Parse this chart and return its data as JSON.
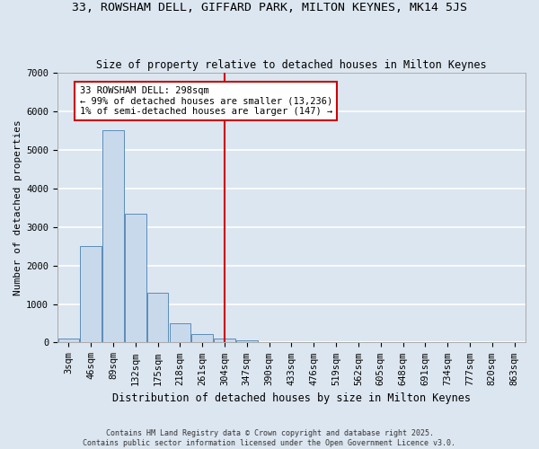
{
  "title": "33, ROWSHAM DELL, GIFFARD PARK, MILTON KEYNES, MK14 5JS",
  "subtitle": "Size of property relative to detached houses in Milton Keynes",
  "xlabel": "Distribution of detached houses by size in Milton Keynes",
  "ylabel": "Number of detached properties",
  "bar_color": "#c9d9ec",
  "bar_edge_color": "#5b8db8",
  "background_color": "#dce6f0",
  "grid_color": "#ffffff",
  "fig_background": "#dce6f0",
  "categories": [
    "3sqm",
    "46sqm",
    "89sqm",
    "132sqm",
    "175sqm",
    "218sqm",
    "261sqm",
    "304sqm",
    "347sqm",
    "390sqm",
    "433sqm",
    "476sqm",
    "519sqm",
    "562sqm",
    "605sqm",
    "648sqm",
    "691sqm",
    "734sqm",
    "777sqm",
    "820sqm",
    "863sqm"
  ],
  "values": [
    100,
    2500,
    5500,
    3350,
    1300,
    500,
    230,
    100,
    60,
    20,
    5,
    2,
    1,
    0,
    0,
    0,
    0,
    0,
    0,
    0,
    0
  ],
  "vline_index": 7,
  "vline_color": "#cc0000",
  "annotation_line1": "33 ROWSHAM DELL: 298sqm",
  "annotation_line2": "← 99% of detached houses are smaller (13,236)",
  "annotation_line3": "1% of semi-detached houses are larger (147) →",
  "ylim": [
    0,
    7000
  ],
  "yticks": [
    0,
    1000,
    2000,
    3000,
    4000,
    5000,
    6000,
    7000
  ],
  "footer_line1": "Contains HM Land Registry data © Crown copyright and database right 2025.",
  "footer_line2": "Contains public sector information licensed under the Open Government Licence v3.0.",
  "title_fontsize": 9.5,
  "subtitle_fontsize": 8.5,
  "xlabel_fontsize": 8.5,
  "ylabel_fontsize": 8,
  "tick_fontsize": 7.5,
  "annot_fontsize": 7.5,
  "footer_fontsize": 6.0
}
